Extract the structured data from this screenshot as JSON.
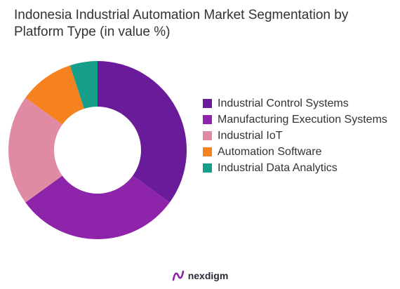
{
  "chart_data": {
    "type": "pie",
    "title": "Indonesia Industrial Automation Market Segmentation by Platform Type (in value %)",
    "donut": true,
    "legend_position": "right",
    "slices": [
      {
        "label": "Industrial Control Systems",
        "value": 35,
        "color": "#6a1b9a"
      },
      {
        "label": "Manufacturing Execution Systems",
        "value": 30,
        "color": "#8e24aa"
      },
      {
        "label": "Industrial IoT",
        "value": 20,
        "color": "#e08aa3"
      },
      {
        "label": "Automation Software",
        "value": 10,
        "color": "#f5821f"
      },
      {
        "label": "Industrial Data Analytics",
        "value": 5,
        "color": "#159f8a"
      }
    ]
  },
  "brand": {
    "name": "nexdigm",
    "color": "#8e24aa"
  }
}
